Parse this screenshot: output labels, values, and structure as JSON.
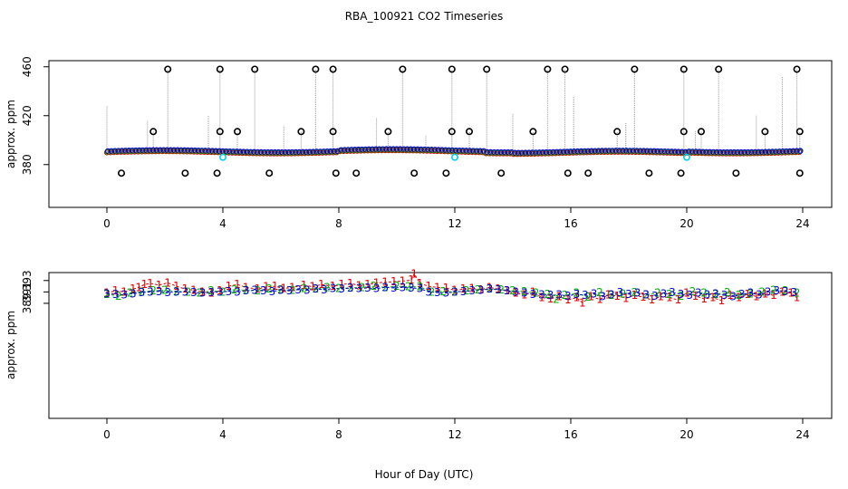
{
  "title": "RBA_100921  CO2 Timeseries",
  "xlabel": "Hour of Day (UTC)",
  "colors": {
    "series1": "#e00000",
    "series2": "#00b000",
    "series3": "#0000d0",
    "flagged": "#000000",
    "cyan": "#00d0e0",
    "spike": "#999999",
    "axis": "#000000"
  },
  "chart_data": [
    {
      "type": "scatter",
      "name": "top-panel",
      "ylabel": "approx. ppm",
      "xlim": [
        -2,
        25
      ],
      "ylim": [
        345,
        465
      ],
      "xticks": [
        0,
        4,
        8,
        12,
        16,
        20,
        24
      ],
      "yticks": [
        380,
        420,
        460
      ],
      "ytick_labels": [
        "380",
        "420",
        "460"
      ],
      "baseline_range": [
        388,
        393
      ],
      "outliers_high": [
        {
          "x": 2.1,
          "y": 458
        },
        {
          "x": 3.9,
          "y": 458
        },
        {
          "x": 5.1,
          "y": 458
        },
        {
          "x": 7.2,
          "y": 458
        },
        {
          "x": 7.8,
          "y": 458
        },
        {
          "x": 10.2,
          "y": 458
        },
        {
          "x": 11.9,
          "y": 458
        },
        {
          "x": 13.1,
          "y": 458
        },
        {
          "x": 15.2,
          "y": 458
        },
        {
          "x": 15.8,
          "y": 458
        },
        {
          "x": 18.2,
          "y": 458
        },
        {
          "x": 19.9,
          "y": 458
        },
        {
          "x": 21.1,
          "y": 458
        },
        {
          "x": 23.8,
          "y": 458
        }
      ],
      "outliers_mid": [
        {
          "x": 1.6,
          "y": 407
        },
        {
          "x": 3.9,
          "y": 407
        },
        {
          "x": 4.5,
          "y": 407
        },
        {
          "x": 6.7,
          "y": 407
        },
        {
          "x": 7.8,
          "y": 407
        },
        {
          "x": 9.7,
          "y": 407
        },
        {
          "x": 11.9,
          "y": 407
        },
        {
          "x": 12.5,
          "y": 407
        },
        {
          "x": 14.7,
          "y": 407
        },
        {
          "x": 17.6,
          "y": 407
        },
        {
          "x": 19.9,
          "y": 407
        },
        {
          "x": 20.5,
          "y": 407
        },
        {
          "x": 22.7,
          "y": 407
        },
        {
          "x": 23.9,
          "y": 407
        }
      ],
      "outliers_low": [
        {
          "x": 0.5,
          "y": 373
        },
        {
          "x": 2.7,
          "y": 373
        },
        {
          "x": 3.8,
          "y": 373
        },
        {
          "x": 5.6,
          "y": 373
        },
        {
          "x": 7.9,
          "y": 373
        },
        {
          "x": 8.6,
          "y": 373
        },
        {
          "x": 10.6,
          "y": 373
        },
        {
          "x": 11.7,
          "y": 373
        },
        {
          "x": 13.6,
          "y": 373
        },
        {
          "x": 15.9,
          "y": 373
        },
        {
          "x": 16.6,
          "y": 373
        },
        {
          "x": 18.7,
          "y": 373
        },
        {
          "x": 19.8,
          "y": 373
        },
        {
          "x": 21.7,
          "y": 373
        },
        {
          "x": 23.9,
          "y": 373
        }
      ],
      "cyan_points": [
        {
          "x": 4.0,
          "y": 386
        },
        {
          "x": 12.0,
          "y": 386
        },
        {
          "x": 20.0,
          "y": 386
        }
      ]
    },
    {
      "type": "line",
      "name": "bottom-panel",
      "ylabel": "approx. ppm",
      "xlim": [
        -2,
        25
      ],
      "ylim": [
        368.8,
        394.4
      ],
      "xticks": [
        0,
        4,
        8,
        12,
        16,
        20,
        24
      ],
      "yticks": [
        389,
        391,
        393
      ],
      "ytick_labels": [
        "389",
        "391",
        "393"
      ],
      "series": [
        {
          "name": "1",
          "marker": "1",
          "color": "#e00000",
          "x": [
            0.0,
            0.3,
            0.6,
            0.9,
            1.1,
            1.3,
            1.5,
            1.8,
            2.1,
            2.4,
            2.7,
            3.0,
            3.3,
            3.6,
            3.9,
            4.2,
            4.5,
            4.8,
            5.2,
            5.5,
            5.8,
            6.1,
            6.4,
            6.8,
            7.1,
            7.4,
            7.8,
            8.1,
            8.4,
            8.7,
            9.0,
            9.3,
            9.6,
            9.9,
            10.2,
            10.5,
            10.6,
            10.8,
            11.1,
            11.4,
            11.7,
            12.0,
            12.3,
            12.6,
            12.9,
            13.2,
            13.5,
            13.8,
            14.1,
            14.4,
            14.7,
            15.0,
            15.3,
            15.6,
            15.9,
            16.2,
            16.4,
            16.7,
            17.0,
            17.3,
            17.6,
            17.9,
            18.2,
            18.5,
            18.8,
            19.1,
            19.4,
            19.7,
            20.0,
            20.3,
            20.6,
            20.9,
            21.2,
            21.5,
            21.8,
            22.1,
            22.4,
            22.7,
            23.0,
            23.3,
            23.6,
            23.8
          ],
          "y": [
            390.8,
            391.2,
            391.0,
            391.5,
            391.8,
            392.3,
            392.5,
            392.2,
            392.6,
            392.0,
            391.5,
            391.3,
            391.0,
            390.8,
            391.2,
            392.0,
            392.3,
            391.8,
            391.5,
            391.9,
            392.0,
            391.6,
            391.8,
            392.2,
            391.9,
            392.3,
            392.0,
            392.3,
            392.5,
            392.1,
            392.3,
            392.6,
            392.7,
            392.8,
            392.9,
            393.1,
            394.2,
            392.5,
            392.0,
            391.8,
            391.7,
            391.3,
            391.5,
            391.6,
            391.4,
            391.8,
            391.5,
            391.2,
            390.8,
            390.5,
            391.0,
            390.0,
            389.8,
            390.2,
            389.6,
            390.0,
            389.1,
            390.2,
            389.7,
            390.5,
            390.3,
            389.9,
            390.4,
            390.1,
            389.6,
            390.2,
            390.0,
            389.6,
            390.8,
            390.3,
            389.8,
            390.0,
            389.5,
            390.4,
            390.0,
            390.6,
            390.2,
            390.7,
            390.4,
            391.0,
            390.8,
            390.0
          ]
        },
        {
          "name": "2",
          "marker": "2",
          "color": "#00b000",
          "x": [
            0.0,
            0.4,
            0.8,
            1.2,
            1.6,
            2.0,
            2.4,
            2.8,
            3.2,
            3.6,
            4.0,
            4.4,
            4.8,
            5.2,
            5.6,
            6.0,
            6.4,
            6.8,
            7.2,
            7.6,
            8.0,
            8.4,
            8.8,
            9.2,
            9.6,
            10.0,
            10.4,
            10.8,
            11.2,
            11.6,
            12.0,
            12.4,
            12.8,
            13.2,
            13.6,
            14.0,
            14.4,
            14.8,
            15.2,
            15.5,
            15.8,
            16.2,
            16.6,
            17.0,
            17.4,
            17.8,
            18.2,
            18.6,
            19.0,
            19.4,
            19.8,
            20.2,
            20.6,
            21.0,
            21.4,
            21.8,
            22.2,
            22.6,
            23.0,
            23.4,
            23.8
          ],
          "y": [
            390.6,
            390.3,
            390.8,
            391.0,
            391.2,
            391.3,
            391.1,
            391.0,
            390.8,
            391.2,
            391.0,
            391.4,
            391.3,
            391.2,
            391.5,
            391.4,
            391.3,
            391.6,
            391.5,
            391.8,
            391.6,
            391.7,
            391.8,
            392.0,
            391.8,
            392.0,
            391.9,
            391.9,
            391.0,
            391.1,
            391.0,
            391.2,
            391.4,
            391.5,
            391.4,
            391.2,
            391.1,
            390.8,
            390.6,
            389.7,
            390.4,
            390.8,
            390.1,
            390.9,
            390.4,
            390.7,
            390.9,
            390.5,
            390.8,
            390.6,
            390.3,
            391.1,
            390.8,
            390.6,
            390.9,
            390.4,
            390.7,
            391.0,
            391.3,
            391.2,
            390.8
          ]
        },
        {
          "name": "3",
          "marker": "3",
          "color": "#0000d0",
          "x": [
            0.0,
            0.3,
            0.6,
            0.9,
            1.2,
            1.5,
            1.8,
            2.1,
            2.4,
            2.7,
            3.0,
            3.3,
            3.6,
            3.9,
            4.2,
            4.5,
            4.8,
            5.1,
            5.4,
            5.7,
            6.0,
            6.3,
            6.6,
            6.9,
            7.2,
            7.5,
            7.8,
            8.1,
            8.4,
            8.7,
            9.0,
            9.3,
            9.6,
            9.9,
            10.2,
            10.5,
            10.8,
            11.1,
            11.4,
            11.7,
            12.0,
            12.3,
            12.6,
            12.9,
            13.2,
            13.5,
            13.8,
            14.1,
            14.4,
            14.7,
            15.0,
            15.3,
            15.6,
            15.9,
            16.2,
            16.5,
            16.8,
            17.1,
            17.4,
            17.7,
            18.0,
            18.3,
            18.6,
            18.9,
            19.2,
            19.5,
            19.8,
            20.1,
            20.4,
            20.7,
            21.0,
            21.3,
            21.6,
            21.9,
            22.2,
            22.5,
            22.8,
            23.1,
            23.4,
            23.7
          ],
          "y": [
            390.7,
            390.6,
            390.5,
            390.7,
            390.9,
            391.0,
            391.1,
            390.9,
            391.0,
            391.0,
            390.9,
            390.8,
            390.9,
            391.0,
            391.1,
            391.0,
            391.2,
            391.3,
            391.2,
            391.1,
            391.3,
            391.2,
            391.4,
            391.3,
            391.5,
            391.4,
            391.6,
            391.5,
            391.7,
            391.6,
            391.7,
            391.6,
            391.8,
            391.7,
            391.8,
            391.7,
            391.6,
            391.0,
            390.9,
            390.8,
            391.0,
            391.1,
            391.2,
            391.3,
            391.5,
            391.4,
            391.2,
            391.0,
            390.8,
            390.6,
            390.5,
            390.4,
            390.5,
            390.3,
            390.6,
            390.4,
            390.7,
            390.2,
            390.5,
            390.9,
            390.6,
            390.8,
            390.5,
            390.3,
            390.7,
            390.9,
            390.6,
            390.4,
            390.8,
            390.5,
            390.7,
            390.4,
            390.2,
            390.6,
            390.8,
            390.5,
            391.0,
            391.2,
            391.1,
            390.9
          ]
        }
      ]
    }
  ]
}
